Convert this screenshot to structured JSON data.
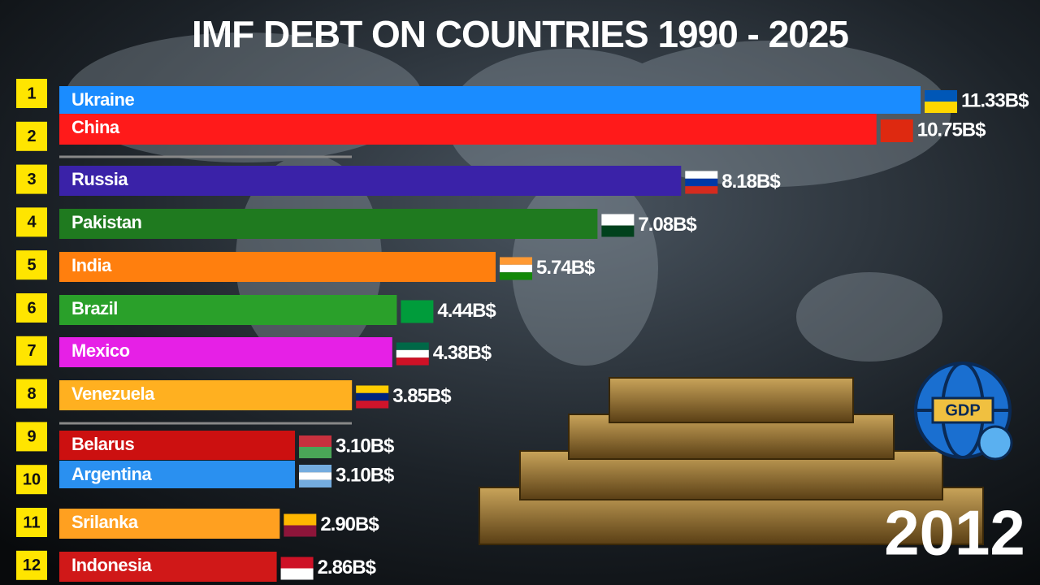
{
  "chart_data": {
    "type": "bar",
    "title": "IMF DEBT ON COUNTRIES 1990 - 2025",
    "ranks": [
      1,
      2,
      3,
      4,
      5,
      6,
      7,
      8,
      9,
      10,
      11,
      12
    ],
    "categories": [
      "Ukraine",
      "China",
      "Russia",
      "Pakistan",
      "India",
      "Brazil",
      "Mexico",
      "Venezuela",
      "Belarus",
      "Argentina",
      "Srilanka",
      "Indonesia"
    ],
    "values": [
      11.33,
      10.75,
      8.18,
      7.08,
      5.74,
      4.44,
      4.38,
      3.85,
      3.1,
      3.1,
      2.9,
      2.86
    ],
    "value_labels": [
      "11.33B$",
      "10.75B$",
      "8.18B$",
      "7.08B$",
      "5.74B$",
      "4.44B$",
      "4.38B$",
      "3.85B$",
      "3.10B$",
      "3.10B$",
      "2.90B$",
      "2.86B$"
    ],
    "colors": [
      "#1a8cff",
      "#ff1a1a",
      "#3a22a8",
      "#1f7a1f",
      "#ff7f0e",
      "#2aa02a",
      "#e620e6",
      "#ffb020",
      "#cc1010",
      "#2a90f0",
      "#ffa020",
      "#d01818"
    ],
    "year": 2012,
    "icon_label": "GDP"
  }
}
